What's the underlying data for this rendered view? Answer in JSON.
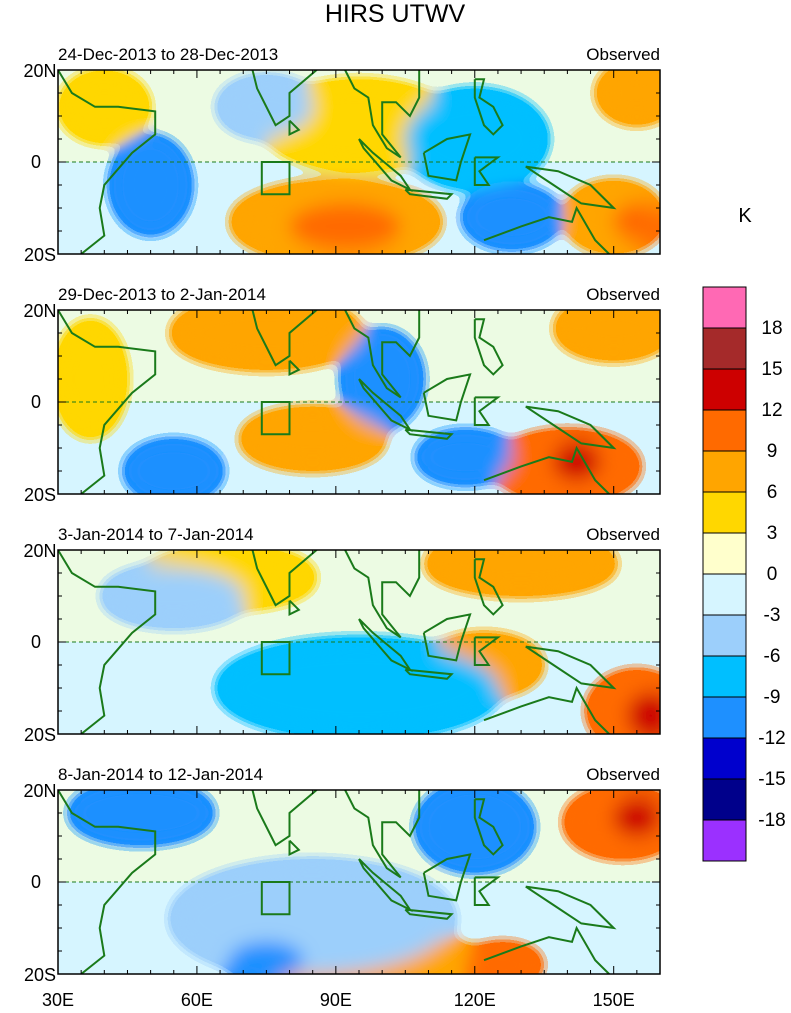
{
  "figure": {
    "title": "HIRS UTWV"
  },
  "panels": [
    {
      "date_range": "24-Dec-2013 to 28-Dec-2013",
      "label": "Observed"
    },
    {
      "date_range": "29-Dec-2013 to 2-Jan-2014",
      "label": "Observed"
    },
    {
      "date_range": "3-Jan-2014 to 7-Jan-2014",
      "label": "Observed"
    },
    {
      "date_range": "8-Jan-2014 to 12-Jan-2014",
      "label": "Observed"
    }
  ],
  "axes": {
    "lat_labels": [
      "20N",
      "0",
      "20S"
    ],
    "lon_labels": [
      "30E",
      "60E",
      "90E",
      "120E",
      "150E"
    ],
    "lat_range": [
      -20,
      20
    ],
    "lon_range": [
      30,
      160
    ]
  },
  "colorbar": {
    "unit": "K",
    "tick_labels": [
      "18",
      "15",
      "12",
      "9",
      "6",
      "3",
      "0",
      "-3",
      "-6",
      "-9",
      "-12",
      "-15",
      "-18"
    ],
    "colors": [
      "#ff69b4",
      "#a52a2a",
      "#cd0000",
      "#ff6a00",
      "#ffa500",
      "#ffd700",
      "#ffffcc",
      "#d6f5ff",
      "#9ccffb",
      "#00bfff",
      "#1e90ff",
      "#0000cd",
      "#00008b",
      "#9b30ff"
    ]
  },
  "colors": {
    "coast": "#1a7a1a",
    "frame": "#000000"
  }
}
